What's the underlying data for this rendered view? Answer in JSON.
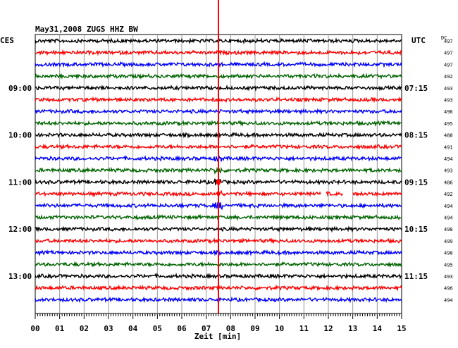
{
  "header": {
    "title": "May31,2008   ZUGS HHZ BW"
  },
  "left_axis": {
    "label": "CES"
  },
  "right_axis": {
    "label": "UTC",
    "dc_label": "DC"
  },
  "chart_data": {
    "type": "line",
    "title": "May31,2008   ZUGS HHZ BW",
    "xlabel": "Zeit [min]",
    "xlim": [
      0,
      15
    ],
    "x_ticks": [
      "00",
      "01",
      "02",
      "03",
      "04",
      "05",
      "06",
      "07",
      "08",
      "09",
      "10",
      "11",
      "12",
      "13",
      "14",
      "15"
    ],
    "left_time_labels": [
      {
        "text": "09:00",
        "trace": 4
      },
      {
        "text": "10:00",
        "trace": 8
      },
      {
        "text": "11:00",
        "trace": 12
      },
      {
        "text": "12:00",
        "trace": 16
      },
      {
        "text": "13:00",
        "trace": 20
      }
    ],
    "right_time_labels": [
      {
        "text": "07:15",
        "trace": 4
      },
      {
        "text": "08:15",
        "trace": 8
      },
      {
        "text": "09:15",
        "trace": 12
      },
      {
        "text": "10:15",
        "trace": 16
      },
      {
        "text": "11:15",
        "trace": 20
      }
    ],
    "dc_values": [
      "497",
      "497",
      "497",
      "492",
      "493",
      "493",
      "496",
      "495",
      "488",
      "491",
      "494",
      "493",
      "486",
      "492",
      "494",
      "494",
      "498",
      "499",
      "498",
      "495",
      "493",
      "496",
      "494"
    ],
    "trace_colors": [
      "#000000",
      "#ff0000",
      "#0000ff",
      "#006400"
    ],
    "event_marker": {
      "x_minutes": 7.5,
      "color": "#ff0000"
    },
    "gaps": [
      {
        "trace": 13,
        "from_minutes": 11.7,
        "to_minutes": 11.9
      },
      {
        "trace": 13,
        "from_minutes": 12.6,
        "to_minutes": 13.0
      }
    ]
  }
}
